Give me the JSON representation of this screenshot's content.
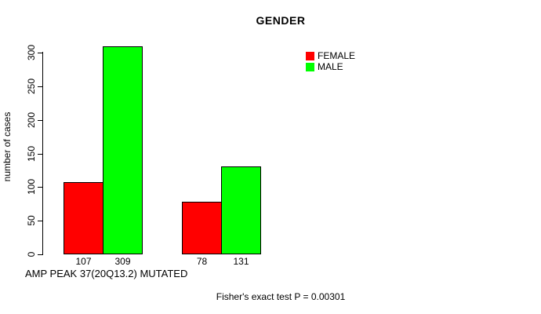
{
  "chart_data": {
    "type": "bar",
    "title": "GENDER",
    "ylabel": "number of cases",
    "xlabel": "AMP PEAK 37(20Q13.2) MUTATED",
    "annotation": "Fisher's exact test P = 0.00301",
    "categories": [
      "",
      ""
    ],
    "series": [
      {
        "name": "FEMALE",
        "color": "#ff0000",
        "values": [
          107,
          78
        ]
      },
      {
        "name": "MALE",
        "color": "#00ff00",
        "values": [
          309,
          131
        ]
      }
    ],
    "value_labels": [
      "107",
      "309",
      "78",
      "131"
    ],
    "ylim": [
      0,
      300
    ],
    "yticks": [
      0,
      50,
      100,
      150,
      200,
      250,
      300
    ],
    "legend_position": "top-right",
    "grid": false,
    "bar_border_color": "#000000",
    "axis_color": "#000000"
  }
}
